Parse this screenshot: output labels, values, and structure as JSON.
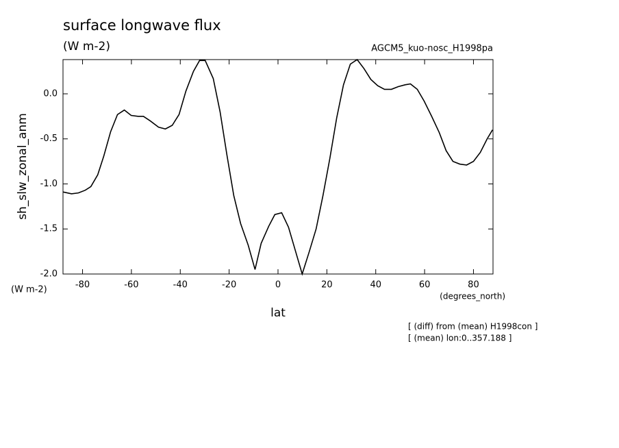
{
  "chart_data": {
    "type": "line",
    "title": "surface longwave flux",
    "subtitle": "(W m-2)",
    "run_label": "AGCM5_kuo-nosc_H1998pa",
    "y_label": "sh_slw_zonal_anm",
    "y_units": "(W m-2)",
    "x_label": "lat",
    "x_units": "(degrees_north)",
    "notes": [
      "[ (diff) from (mean) H1998con ]",
      "[ (mean) lon:0..357.188 ]"
    ],
    "x": [
      -87.9,
      -84.5,
      -81.7,
      -78.9,
      -76.6,
      -73.8,
      -71.3,
      -68.5,
      -65.7,
      -62.9,
      -60.1,
      -57.3,
      -55.1,
      -52.3,
      -48.9,
      -46.1,
      -43.3,
      -40.5,
      -37.7,
      -34.6,
      -32.1,
      -29.8,
      -26.5,
      -23.7,
      -20.9,
      -18.1,
      -15.3,
      -12.2,
      -9.4,
      -6.9,
      -3.8,
      -1.3,
      1.5,
      4.3,
      7.1,
      9.9,
      12.7,
      15.6,
      18.4,
      21.2,
      24.0,
      26.8,
      29.6,
      32.4,
      35.2,
      38.0,
      40.8,
      43.6,
      46.4,
      49.2,
      52.0,
      54.2,
      57.0,
      59.8,
      62.9,
      66.0,
      68.8,
      71.6,
      74.4,
      77.2,
      80.0,
      82.8,
      85.6,
      87.8
    ],
    "series": [
      {
        "color": "#000000",
        "values": [
          -1.09,
          -1.11,
          -1.1,
          -1.07,
          -1.03,
          -0.9,
          -0.69,
          -0.42,
          -0.23,
          -0.18,
          -0.24,
          -0.25,
          -0.25,
          -0.3,
          -0.37,
          -0.39,
          -0.35,
          -0.23,
          0.03,
          0.25,
          0.37,
          0.37,
          0.17,
          -0.2,
          -0.68,
          -1.13,
          -1.44,
          -1.68,
          -1.95,
          -1.66,
          -1.47,
          -1.34,
          -1.32,
          -1.48,
          -1.74,
          -2.0,
          -1.76,
          -1.5,
          -1.13,
          -0.72,
          -0.27,
          0.1,
          0.33,
          0.38,
          0.28,
          0.16,
          0.09,
          0.05,
          0.05,
          0.08,
          0.1,
          0.11,
          0.05,
          -0.08,
          -0.25,
          -0.43,
          -0.63,
          -0.75,
          -0.78,
          -0.79,
          -0.75,
          -0.65,
          -0.5,
          -0.4
        ]
      }
    ],
    "xlim": [
      -88,
      88
    ],
    "ylim": [
      -2.0,
      0.38
    ],
    "xticks": [
      -80,
      -60,
      -40,
      -20,
      0,
      20,
      40,
      60,
      80
    ],
    "yticks": [
      {
        "value": 0,
        "label": "0.0"
      },
      -0.5,
      {
        "value": -1,
        "label": "-1.0"
      },
      -1.5,
      {
        "value": -2,
        "label": "-2.0"
      }
    ]
  }
}
